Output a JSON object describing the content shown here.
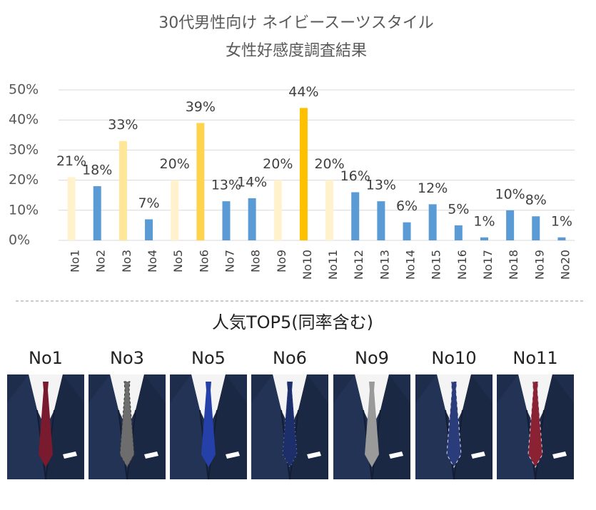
{
  "chart_data": {
    "type": "bar",
    "title": "30代男性向け ネイビースーツスタイル",
    "subtitle": "女性好感度調査結果",
    "categories": [
      "No1",
      "No2",
      "No3",
      "No4",
      "No5",
      "No6",
      "No7",
      "No8",
      "No9",
      "No10",
      "No11",
      "No12",
      "No13",
      "No14",
      "No15",
      "No16",
      "No17",
      "No18",
      "No19",
      "No20"
    ],
    "values": [
      21,
      18,
      33,
      7,
      20,
      39,
      13,
      14,
      20,
      44,
      20,
      16,
      13,
      6,
      12,
      5,
      1,
      10,
      8,
      1
    ],
    "value_labels": [
      "21%",
      "18%",
      "33%",
      "7%",
      "20%",
      "39%",
      "13%",
      "14%",
      "20%",
      "44%",
      "20%",
      "16%",
      "13%",
      "6%",
      "12%",
      "5%",
      "1%",
      "10%",
      "8%",
      "1%"
    ],
    "colors": [
      "#fff2cc",
      "#5b9bd5",
      "#ffe699",
      "#5b9bd5",
      "#fff2cc",
      "#ffd34d",
      "#5b9bd5",
      "#5b9bd5",
      "#fff2cc",
      "#ffc000",
      "#fff2cc",
      "#5b9bd5",
      "#5b9bd5",
      "#5b9bd5",
      "#5b9bd5",
      "#5b9bd5",
      "#5b9bd5",
      "#5b9bd5",
      "#5b9bd5",
      "#5b9bd5"
    ],
    "ylim": [
      0,
      50
    ],
    "yticks": [
      {
        "value": 0,
        "label": "0%"
      },
      {
        "value": 10,
        "label": "10%"
      },
      {
        "value": 20,
        "label": "20%"
      },
      {
        "value": 30,
        "label": "30%"
      },
      {
        "value": 40,
        "label": "40%"
      },
      {
        "value": 50,
        "label": "50%"
      }
    ],
    "grid": true
  },
  "top5": {
    "title": "人気TOP5(同率含む)",
    "items": [
      "No1",
      "No3",
      "No5",
      "No6",
      "No9",
      "No10",
      "No11"
    ]
  }
}
